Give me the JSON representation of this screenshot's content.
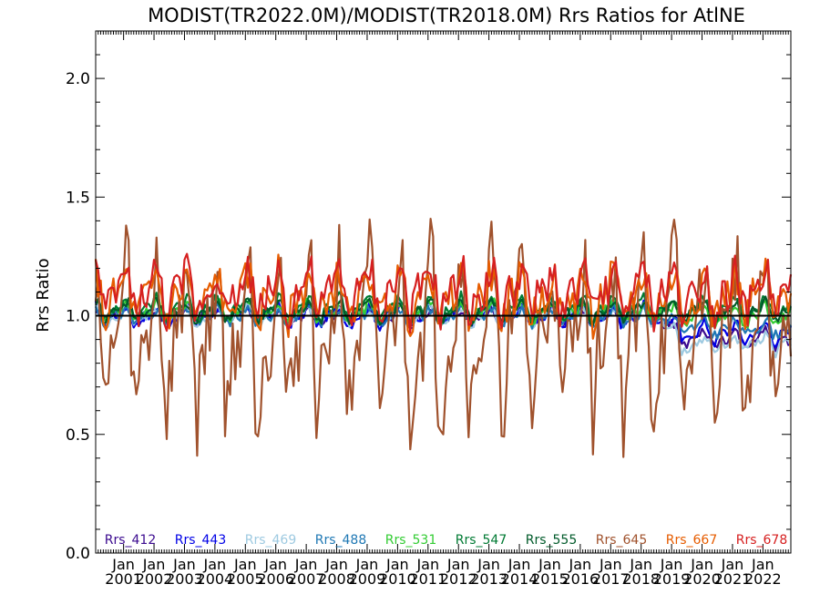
{
  "chart_data": {
    "type": "line",
    "title": "MODIST(TR2022.0M)/MODIST(TR2018.0M)  Rrs Ratios for AtlNE",
    "xlabel": "",
    "ylabel": "Rrs Ratio",
    "xlim": [
      "2000-02",
      "2022-12"
    ],
    "ylim": [
      0.0,
      2.2
    ],
    "yticks": [
      0.0,
      0.5,
      1.0,
      1.5,
      2.0
    ],
    "ytick_labels": [
      "0.0",
      "0.5",
      "1.0",
      "1.5",
      "2.0"
    ],
    "xtick_month_label": "Jan",
    "xtick_years": [
      2001,
      2002,
      2003,
      2004,
      2005,
      2006,
      2007,
      2008,
      2009,
      2010,
      2011,
      2012,
      2013,
      2014,
      2015,
      2016,
      2017,
      2018,
      2019,
      2020,
      2021,
      2022
    ],
    "reference_line": 1.0,
    "grid": false,
    "legend_position": "bottom",
    "series": [
      {
        "name": "Rrs_412",
        "color": "#3b0a8f",
        "base": 1.0,
        "amp": 0.04,
        "spike": 0.03,
        "trend_start": 2018.5,
        "trend": -0.1,
        "seed": 1
      },
      {
        "name": "Rrs_443",
        "color": "#0000e6",
        "base": 1.0,
        "amp": 0.05,
        "spike": 0.03,
        "trend_start": 2018.5,
        "trend": -0.07,
        "seed": 2
      },
      {
        "name": "Rrs_469",
        "color": "#9ecae1",
        "base": 1.0,
        "amp": 0.04,
        "spike": 0.03,
        "trend_start": 2018.5,
        "trend": -0.12,
        "seed": 3
      },
      {
        "name": "Rrs_488",
        "color": "#1f78b4",
        "base": 1.0,
        "amp": 0.04,
        "spike": 0.03,
        "trend_start": 2018.5,
        "trend": -0.05,
        "seed": 4
      },
      {
        "name": "Rrs_531",
        "color": "#33cc33",
        "base": 1.02,
        "amp": 0.05,
        "spike": 0.03,
        "trend_start": 2018.5,
        "trend": -0.02,
        "seed": 5
      },
      {
        "name": "Rrs_547",
        "color": "#007a33",
        "base": 1.03,
        "amp": 0.06,
        "spike": 0.03,
        "trend_start": 2018.5,
        "trend": 0.0,
        "seed": 6
      },
      {
        "name": "Rrs_555",
        "color": "#005a2a",
        "base": 1.02,
        "amp": 0.05,
        "spike": 0.03,
        "trend_start": 2018.5,
        "trend": 0.0,
        "seed": 7
      },
      {
        "name": "Rrs_645",
        "color": "#a0522d",
        "base": 0.92,
        "amp": 0.4,
        "spike": 0.25,
        "trend_start": 2018.5,
        "trend": 0.0,
        "seed": 8
      },
      {
        "name": "Rrs_667",
        "color": "#e65c00",
        "base": 1.08,
        "amp": 0.12,
        "spike": 0.1,
        "trend_start": 2018.5,
        "trend": 0.0,
        "seed": 9
      },
      {
        "name": "Rrs_678",
        "color": "#d62020",
        "base": 1.1,
        "amp": 0.12,
        "spike": 0.1,
        "trend_start": 2018.5,
        "trend": 0.0,
        "seed": 10
      }
    ]
  }
}
